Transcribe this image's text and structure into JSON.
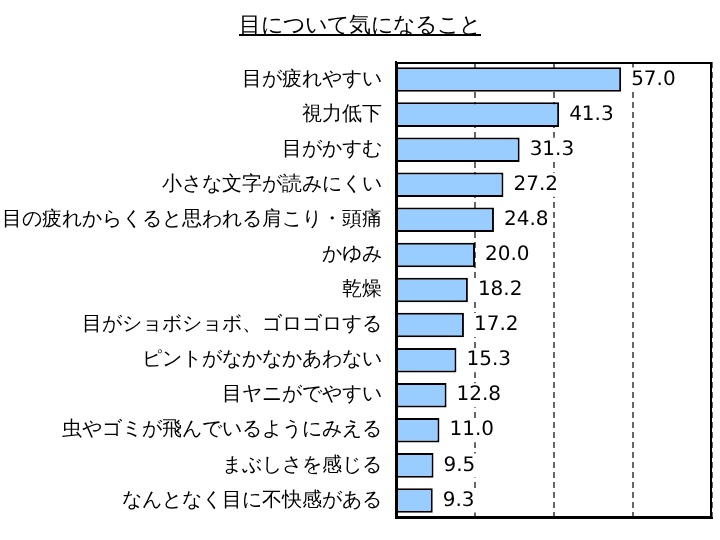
{
  "chart_data": {
    "type": "bar",
    "orientation": "horizontal",
    "title": "目について気になること",
    "categories": [
      "目が疲れやすい",
      "視力低下",
      "目がかすむ",
      "小さな文字が読みにくい",
      "目の疲れからくると思われる肩こり・頭痛",
      "かゆみ",
      "乾燥",
      "目がショボショボ、ゴロゴロする",
      "ピントがなかなかあわない",
      "目ヤニがでやすい",
      "虫やゴミが飛んでいるようにみえる",
      "まぶしさを感じる",
      "なんとなく目に不快感がある"
    ],
    "values": [
      57.0,
      41.3,
      31.3,
      27.2,
      24.8,
      20.0,
      18.2,
      17.2,
      15.3,
      12.8,
      11.0,
      9.5,
      9.3
    ],
    "value_labels": [
      "57.0",
      "41.3",
      "31.3",
      "27.2",
      "24.8",
      "20.0",
      "18.2",
      "17.2",
      "15.3",
      "12.8",
      "11.0",
      "9.5",
      "9.3"
    ],
    "color": "#99ccff",
    "xlim": [
      0,
      80
    ],
    "xticks": [
      {
        "value": 0,
        "label": null
      },
      {
        "value": 20,
        "label": null
      },
      {
        "value": 40,
        "label": null
      },
      {
        "value": 60,
        "label": null
      },
      {
        "value": 80,
        "label": null
      }
    ],
    "grid": "x",
    "tick_labels": "y",
    "legend": false
  }
}
